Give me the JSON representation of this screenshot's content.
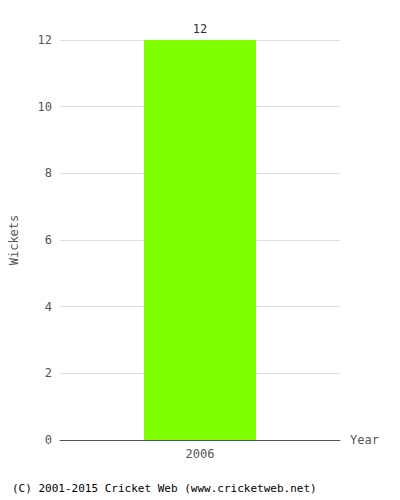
{
  "chart_data": {
    "type": "bar",
    "categories": [
      "2006"
    ],
    "values": [
      12
    ],
    "color": "#7fff00",
    "ylabel": "Wickets",
    "xlabel": "Year",
    "ylim": [
      0,
      12
    ],
    "yticks": [
      0,
      2,
      4,
      6,
      8,
      10,
      12
    ],
    "grid": true,
    "data_labels": true,
    "annotations": [
      "(C) 2001-2015 Cricket Web (www.cricketweb.net)"
    ]
  }
}
